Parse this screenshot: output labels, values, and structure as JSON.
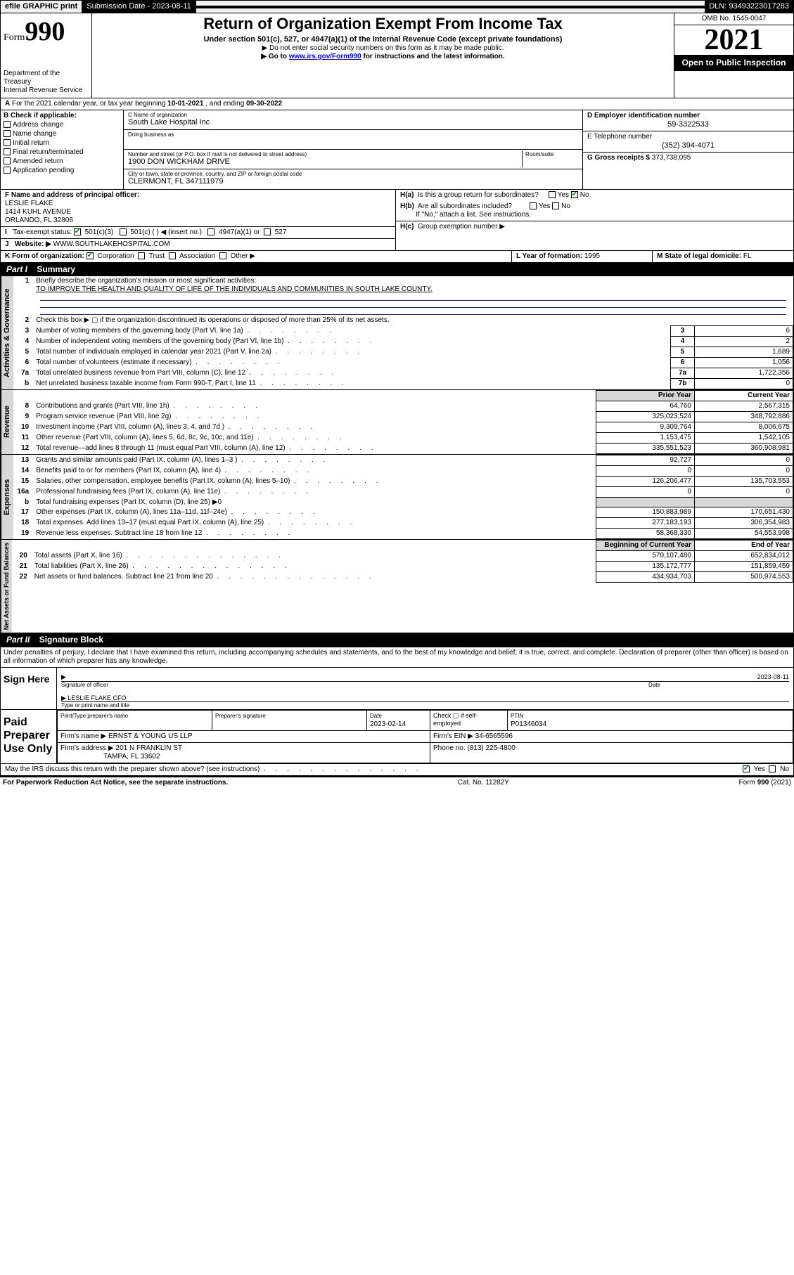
{
  "topbar": {
    "efile": "efile GRAPHIC print",
    "subdate_label": "Submission Date - ",
    "subdate": "2023-08-11",
    "dln_label": "DLN: ",
    "dln": "93493223017283"
  },
  "header": {
    "form_label": "Form",
    "form_num": "990",
    "dept": "Department of the Treasury\nInternal Revenue Service",
    "title": "Return of Organization Exempt From Income Tax",
    "subtitle": "Under section 501(c), 527, or 4947(a)(1) of the Internal Revenue Code (except private foundations)",
    "warn1": "▶ Do not enter social security numbers on this form as it may be made public.",
    "warn2_pre": "▶ Go to ",
    "warn2_link": "www.irs.gov/Form990",
    "warn2_post": " for instructions and the latest information.",
    "omb": "OMB No. 1545-0047",
    "year": "2021",
    "open": "Open to Public Inspection"
  },
  "A": {
    "text_pre": "For the 2021 calendar year, or tax year beginning ",
    "begin": "10-01-2021",
    "mid": " , and ending ",
    "end": "09-30-2022"
  },
  "B": {
    "label": "B Check if applicable:",
    "items": [
      "Address change",
      "Name change",
      "Initial return",
      "Final return/terminated",
      "Amended return",
      "Application pending"
    ]
  },
  "C": {
    "name_label": "C Name of organization",
    "name": "South Lake Hospital Inc",
    "dba_label": "Doing business as",
    "addr_label": "Number and street (or P.O. box if mail is not delivered to street address)",
    "room_label": "Room/suite",
    "addr": "1900 DON WICKHAM DRIVE",
    "city_label": "City or town, state or province, country, and ZIP or foreign postal code",
    "city": "CLERMONT, FL  347111979"
  },
  "D": {
    "label": "D Employer identification number",
    "val": "59-3322533"
  },
  "E": {
    "label": "E Telephone number",
    "val": "(352) 394-4071"
  },
  "G": {
    "label": "G Gross receipts $ ",
    "val": "373,738,095"
  },
  "F": {
    "label": "F  Name and address of principal officer:",
    "name": "LESLIE FLAKE",
    "addr1": "1414 KUHL AVENUE",
    "addr2": "ORLANDO, FL  32806"
  },
  "H": {
    "a": "Is this a group return for subordinates?",
    "b": "Are all subordinates included?",
    "b_note": "If \"No,\" attach a list. See instructions.",
    "c": "Group exemption number ▶"
  },
  "I": {
    "label": "Tax-exempt status:",
    "opts": [
      "501(c)(3)",
      "501(c) (  ) ◀ (insert no.)",
      "4947(a)(1) or",
      "527"
    ]
  },
  "J": {
    "label": "Website: ▶",
    "val": "WWW.SOUTHLAKEHOSPITAL.COM"
  },
  "K": {
    "label": "K Form of organization:",
    "opts": [
      "Corporation",
      "Trust",
      "Association",
      "Other ▶"
    ]
  },
  "L": {
    "label": "L Year of formation: ",
    "val": "1995"
  },
  "M": {
    "label": "M State of legal domicile: ",
    "val": "FL"
  },
  "part1": {
    "head": "Part I",
    "title": "Summary",
    "q1": "Briefly describe the organization's mission or most significant activities:",
    "mission": "TO IMPROVE THE HEALTH AND QUALITY OF LIFE OF THE INDIVIDUALS AND COMMUNITIES IN SOUTH LAKE COUNTY.",
    "q2": "Check this box ▶ ▢  if the organization discontinued its operations or disposed of more than 25% of its net assets.",
    "lines_gov": [
      {
        "n": "3",
        "t": "Number of voting members of the governing body (Part VI, line 1a)",
        "box": "3",
        "v": "6"
      },
      {
        "n": "4",
        "t": "Number of independent voting members of the governing body (Part VI, line 1b)",
        "box": "4",
        "v": "2"
      },
      {
        "n": "5",
        "t": "Total number of individuals employed in calendar year 2021 (Part V, line 2a)",
        "box": "5",
        "v": "1,689"
      },
      {
        "n": "6",
        "t": "Total number of volunteers (estimate if necessary)",
        "box": "6",
        "v": "1,056"
      },
      {
        "n": "7a",
        "t": "Total unrelated business revenue from Part VIII, column (C), line 12",
        "box": "7a",
        "v": "1,722,356"
      },
      {
        "n": "b",
        "t": "Net unrelated business taxable income from Form 990-T, Part I, line 11",
        "box": "7b",
        "v": "0"
      }
    ],
    "col_prior": "Prior Year",
    "col_curr": "Current Year",
    "lines_rev": [
      {
        "n": "8",
        "t": "Contributions and grants (Part VIII, line 1h)",
        "p": "64,760",
        "c": "2,567,315"
      },
      {
        "n": "9",
        "t": "Program service revenue (Part VIII, line 2g)",
        "p": "325,023,524",
        "c": "348,792,886"
      },
      {
        "n": "10",
        "t": "Investment income (Part VIII, column (A), lines 3, 4, and 7d )",
        "p": "9,309,764",
        "c": "8,006,675"
      },
      {
        "n": "11",
        "t": "Other revenue (Part VIII, column (A), lines 5, 6d, 8c, 9c, 10c, and 11e)",
        "p": "1,153,475",
        "c": "1,542,105"
      },
      {
        "n": "12",
        "t": "Total revenue—add lines 8 through 11 (must equal Part VIII, column (A), line 12)",
        "p": "335,551,523",
        "c": "360,908,981"
      }
    ],
    "lines_exp": [
      {
        "n": "13",
        "t": "Grants and similar amounts paid (Part IX, column (A), lines 1–3 )",
        "p": "92,727",
        "c": "0"
      },
      {
        "n": "14",
        "t": "Benefits paid to or for members (Part IX, column (A), line 4)",
        "p": "0",
        "c": "0"
      },
      {
        "n": "15",
        "t": "Salaries, other compensation, employee benefits (Part IX, column (A), lines 5–10)",
        "p": "126,206,477",
        "c": "135,703,553"
      },
      {
        "n": "16a",
        "t": "Professional fundraising fees (Part IX, column (A), line 11e)",
        "p": "0",
        "c": "0"
      },
      {
        "n": "b",
        "t": "Total fundraising expenses (Part IX, column (D), line 25) ▶0",
        "p": "",
        "c": "",
        "shade": true
      },
      {
        "n": "17",
        "t": "Other expenses (Part IX, column (A), lines 11a–11d, 11f–24e)",
        "p": "150,883,989",
        "c": "170,651,430"
      },
      {
        "n": "18",
        "t": "Total expenses. Add lines 13–17 (must equal Part IX, column (A), line 25)",
        "p": "277,183,193",
        "c": "306,354,983"
      },
      {
        "n": "19",
        "t": "Revenue less expenses. Subtract line 18 from line 12",
        "p": "58,368,330",
        "c": "54,553,998"
      }
    ],
    "col_begin": "Beginning of Current Year",
    "col_end": "End of Year",
    "lines_net": [
      {
        "n": "20",
        "t": "Total assets (Part X, line 16)",
        "p": "570,107,480",
        "c": "652,834,012"
      },
      {
        "n": "21",
        "t": "Total liabilities (Part X, line 26)",
        "p": "135,172,777",
        "c": "151,859,459"
      },
      {
        "n": "22",
        "t": "Net assets or fund balances. Subtract line 21 from line 20",
        "p": "434,934,703",
        "c": "500,974,553"
      }
    ],
    "vert_gov": "Activities & Governance",
    "vert_rev": "Revenue",
    "vert_exp": "Expenses",
    "vert_net": "Net Assets or Fund Balances"
  },
  "part2": {
    "head": "Part II",
    "title": "Signature Block",
    "decl": "Under penalties of perjury, I declare that I have examined this return, including accompanying schedules and statements, and to the best of my knowledge and belief, it is true, correct, and complete. Declaration of preparer (other than officer) is based on all information of which preparer has any knowledge.",
    "sign_here": "Sign Here",
    "sig_officer": "Signature of officer",
    "sig_date": "2023-08-11",
    "date_label": "Date",
    "officer_name": "LESLIE FLAKE  CFO",
    "type_label": "Type or print name and title",
    "paid": "Paid Preparer Use Only",
    "prep_name_label": "Print/Type preparer's name",
    "prep_sig_label": "Preparer's signature",
    "prep_date_label": "Date",
    "prep_date": "2023-02-14",
    "check_if": "Check ▢ if self-employed",
    "ptin_label": "PTIN",
    "ptin": "P01346034",
    "firm_name_label": "Firm's name      ▶",
    "firm_name": "ERNST & YOUNG US LLP",
    "firm_ein_label": "Firm's EIN ▶",
    "firm_ein": "34-6565596",
    "firm_addr_label": "Firm's address ▶",
    "firm_addr1": "201 N FRANKLIN ST",
    "firm_addr2": "TAMPA, FL  33602",
    "phone_label": "Phone no. ",
    "phone": "(813) 225-4800",
    "discuss": "May the IRS discuss this return with the preparer shown above? (see instructions)"
  },
  "footer": {
    "left": "For Paperwork Reduction Act Notice, see the separate instructions.",
    "mid": "Cat. No. 11282Y",
    "right": "Form 990 (2021)"
  },
  "colors": {
    "link": "#0000ee",
    "check": "#1a7f1a",
    "shade": "#d8d8d8",
    "line": "#2020c0"
  }
}
